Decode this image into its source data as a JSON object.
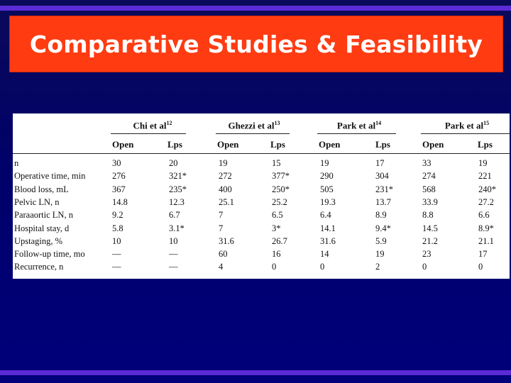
{
  "slide": {
    "title": "Comparative Studies & Feasibility"
  },
  "table": {
    "studies": [
      {
        "name": "Chi et al",
        "ref": "12"
      },
      {
        "name": "Ghezzi et al",
        "ref": "13"
      },
      {
        "name": "Park et al",
        "ref": "14"
      },
      {
        "name": "Park et al",
        "ref": "15"
      }
    ],
    "subheaders": [
      "Open",
      "Lps",
      "Open",
      "Lps",
      "Open",
      "Lps",
      "Open",
      "Lps"
    ],
    "rows": [
      {
        "label": "n",
        "values": [
          "30",
          "20",
          "19",
          "15",
          "19",
          "17",
          "33",
          "19"
        ]
      },
      {
        "label": "Operative time, min",
        "values": [
          "276",
          "321*",
          "272",
          "377*",
          "290",
          "304",
          "274",
          "221"
        ]
      },
      {
        "label": "Blood loss, mL",
        "values": [
          "367",
          "235*",
          "400",
          "250*",
          "505",
          "231*",
          "568",
          "240*"
        ]
      },
      {
        "label": "Pelvic LN, n",
        "values": [
          "14.8",
          "12.3",
          "25.1",
          "25.2",
          "19.3",
          "13.7",
          "33.9",
          "27.2"
        ]
      },
      {
        "label": "Paraaortic LN, n",
        "values": [
          "9.2",
          "6.7",
          "7",
          "6.5",
          "6.4",
          "8.9",
          "8.8",
          "6.6"
        ]
      },
      {
        "label": "Hospital stay, d",
        "values": [
          "5.8",
          "3.1*",
          "7",
          "3*",
          "14.1",
          "9.4*",
          "14.5",
          "8.9*"
        ]
      },
      {
        "label": "Upstaging, %",
        "values": [
          "10",
          "10",
          "31.6",
          "26.7",
          "31.6",
          "5.9",
          "21.2",
          "21.1"
        ]
      },
      {
        "label": "Follow-up time, mo",
        "values": [
          "—",
          "—",
          "60",
          "16",
          "14",
          "19",
          "23",
          "17"
        ]
      },
      {
        "label": "Recurrence, n",
        "values": [
          "—",
          "—",
          "4",
          "0",
          "0",
          "2",
          "0",
          "0"
        ]
      }
    ]
  }
}
